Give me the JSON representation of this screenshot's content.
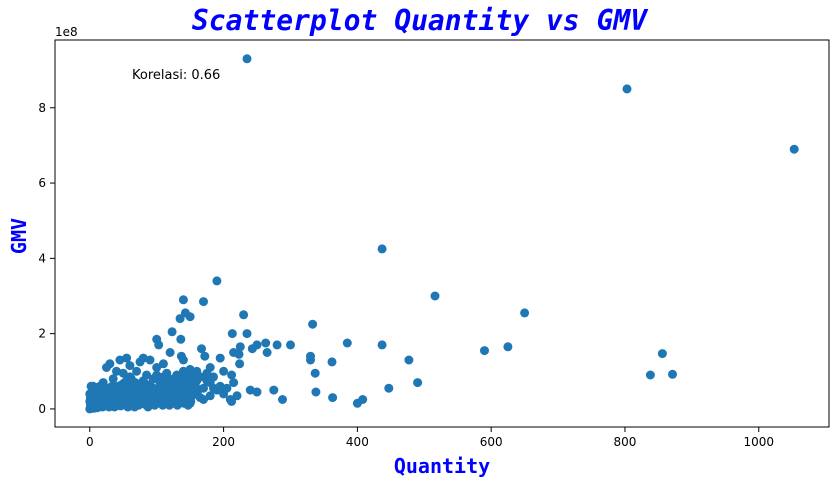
{
  "chart_data": {
    "type": "scatter",
    "title": "Scatterplot Quantity vs GMV",
    "xlabel": "Quantity",
    "ylabel": "GMV",
    "y_offset_label": "1e8",
    "annotation": "Korelasi: 0.66",
    "xlim": [
      -52,
      1105
    ],
    "ylim": [
      -0.48,
      9.8
    ],
    "y_unit_multiplier": 100000000,
    "x_ticks": [
      0,
      200,
      400,
      600,
      800,
      1000
    ],
    "y_ticks": [
      0,
      2,
      4,
      6,
      8
    ],
    "grid": false,
    "point_color": "#1f77b4",
    "title_color": "#0000ff",
    "series": [
      {
        "points": [
          [
            235,
            9.3
          ],
          [
            803,
            8.5
          ],
          [
            1053,
            6.9
          ],
          [
            437,
            4.25
          ],
          [
            516,
            3.0
          ],
          [
            190,
            3.4
          ],
          [
            140,
            2.9
          ],
          [
            170,
            2.85
          ],
          [
            143,
            2.55
          ],
          [
            150,
            2.45
          ],
          [
            135,
            2.4
          ],
          [
            230,
            2.5
          ],
          [
            650,
            2.55
          ],
          [
            333,
            2.25
          ],
          [
            123,
            2.05
          ],
          [
            213,
            2.0
          ],
          [
            235,
            2.0
          ],
          [
            100,
            1.85
          ],
          [
            136,
            1.85
          ],
          [
            103,
            1.7
          ],
          [
            385,
            1.75
          ],
          [
            437,
            1.7
          ],
          [
            625,
            1.65
          ],
          [
            590,
            1.55
          ],
          [
            856,
            1.47
          ],
          [
            300,
            1.7
          ],
          [
            280,
            1.7
          ],
          [
            263,
            1.75
          ],
          [
            250,
            1.7
          ],
          [
            225,
            1.65
          ],
          [
            223,
            1.45
          ],
          [
            215,
            1.5
          ],
          [
            167,
            1.6
          ],
          [
            172,
            1.4
          ],
          [
            195,
            1.35
          ],
          [
            265,
            1.5
          ],
          [
            243,
            1.6
          ],
          [
            330,
            1.4
          ],
          [
            330,
            1.3
          ],
          [
            362,
            1.25
          ],
          [
            477,
            1.3
          ],
          [
            224,
            1.2
          ],
          [
            120,
            1.5
          ],
          [
            137,
            1.4
          ],
          [
            140,
            1.3
          ],
          [
            110,
            1.2
          ],
          [
            90,
            1.3
          ],
          [
            80,
            1.35
          ],
          [
            75,
            1.25
          ],
          [
            55,
            1.35
          ],
          [
            45,
            1.3
          ],
          [
            30,
            1.2
          ],
          [
            25,
            1.1
          ],
          [
            60,
            1.15
          ],
          [
            100,
            1.1
          ],
          [
            150,
            1.05
          ],
          [
            160,
            1.0
          ],
          [
            180,
            1.1
          ],
          [
            200,
            1.0
          ],
          [
            212,
            0.9
          ],
          [
            337,
            0.95
          ],
          [
            838,
            0.9
          ],
          [
            871,
            0.92
          ],
          [
            490,
            0.7
          ],
          [
            447,
            0.55
          ],
          [
            275,
            0.5
          ],
          [
            240,
            0.5
          ],
          [
            250,
            0.45
          ],
          [
            338,
            0.45
          ],
          [
            363,
            0.3
          ],
          [
            400,
            0.15
          ],
          [
            408,
            0.25
          ],
          [
            288,
            0.25
          ],
          [
            210,
            0.25
          ],
          [
            212,
            0.2
          ],
          [
            170,
            0.25
          ],
          [
            165,
            0.3
          ],
          [
            150,
            0.15
          ],
          [
            130,
            0.5
          ],
          [
            140,
            0.6
          ],
          [
            155,
            0.7
          ],
          [
            175,
            0.75
          ],
          [
            185,
            0.55
          ],
          [
            200,
            0.4
          ],
          [
            195,
            0.6
          ],
          [
            180,
            0.35
          ],
          [
            160,
            0.45
          ],
          [
            145,
            0.35
          ],
          [
            120,
            0.3
          ],
          [
            110,
            0.4
          ],
          [
            105,
            0.7
          ],
          [
            95,
            0.8
          ],
          [
            85,
            0.9
          ],
          [
            70,
            1.0
          ],
          [
            60,
            0.85
          ],
          [
            50,
            0.95
          ],
          [
            40,
            1.0
          ],
          [
            35,
            0.8
          ],
          [
            20,
            0.7
          ],
          [
            15,
            0.6
          ],
          [
            10,
            0.55
          ],
          [
            5,
            0.6
          ],
          [
            2,
            0.4
          ],
          [
            8,
            0.3
          ],
          [
            12,
            0.25
          ],
          [
            18,
            0.2
          ],
          [
            22,
            0.15
          ],
          [
            28,
            0.35
          ],
          [
            32,
            0.45
          ],
          [
            38,
            0.5
          ],
          [
            42,
            0.6
          ],
          [
            48,
            0.65
          ],
          [
            55,
            0.55
          ],
          [
            62,
            0.6
          ],
          [
            68,
            0.7
          ],
          [
            72,
            0.45
          ],
          [
            78,
            0.5
          ],
          [
            82,
            0.6
          ],
          [
            88,
            0.55
          ],
          [
            92,
            0.45
          ],
          [
            98,
            0.35
          ],
          [
            102,
            0.5
          ],
          [
            108,
            0.55
          ],
          [
            115,
            0.6
          ],
          [
            118,
            0.75
          ],
          [
            125,
            0.8
          ],
          [
            128,
            0.65
          ],
          [
            132,
            0.7
          ],
          [
            138,
            0.55
          ],
          [
            142,
            0.85
          ],
          [
            148,
            0.95
          ],
          [
            152,
            0.8
          ],
          [
            158,
            0.6
          ],
          [
            162,
            0.5
          ],
          [
            3,
            0.05
          ],
          [
            4,
            0.1
          ],
          [
            6,
            0.02
          ],
          [
            7,
            0.15
          ],
          [
            9,
            0.08
          ],
          [
            11,
            0.12
          ],
          [
            13,
            0.05
          ],
          [
            14,
            0.18
          ],
          [
            16,
            0.1
          ],
          [
            17,
            0.25
          ],
          [
            19,
            0.05
          ],
          [
            21,
            0.3
          ],
          [
            23,
            0.08
          ],
          [
            24,
            0.2
          ],
          [
            26,
            0.12
          ],
          [
            27,
            0.4
          ],
          [
            29,
            0.05
          ],
          [
            31,
            0.22
          ],
          [
            33,
            0.1
          ],
          [
            34,
            0.3
          ],
          [
            36,
            0.15
          ],
          [
            37,
            0.05
          ],
          [
            39,
            0.25
          ],
          [
            41,
            0.35
          ],
          [
            43,
            0.1
          ],
          [
            44,
            0.2
          ],
          [
            46,
            0.08
          ],
          [
            47,
            0.3
          ],
          [
            49,
            0.15
          ],
          [
            51,
            0.4
          ],
          [
            53,
            0.2
          ],
          [
            54,
            0.1
          ],
          [
            56,
            0.3
          ],
          [
            57,
            0.05
          ],
          [
            58,
            0.22
          ],
          [
            59,
            0.35
          ],
          [
            61,
            0.12
          ],
          [
            63,
            0.25
          ],
          [
            64,
            0.4
          ],
          [
            65,
            0.15
          ],
          [
            66,
            0.3
          ],
          [
            67,
            0.05
          ],
          [
            69,
            0.2
          ],
          [
            71,
            0.35
          ],
          [
            73,
            0.1
          ],
          [
            74,
            0.28
          ],
          [
            76,
            0.15
          ],
          [
            77,
            0.4
          ],
          [
            79,
            0.2
          ],
          [
            81,
            0.3
          ],
          [
            83,
            0.12
          ],
          [
            84,
            0.35
          ],
          [
            86,
            0.25
          ],
          [
            87,
            0.05
          ],
          [
            89,
            0.2
          ],
          [
            91,
            0.3
          ],
          [
            93,
            0.15
          ],
          [
            94,
            0.4
          ],
          [
            96,
            0.22
          ],
          [
            97,
            0.1
          ],
          [
            99,
            0.3
          ],
          [
            101,
            0.2
          ],
          [
            104,
            0.35
          ],
          [
            106,
            0.15
          ],
          [
            107,
            0.28
          ],
          [
            109,
            0.1
          ],
          [
            111,
            0.25
          ],
          [
            112,
            0.4
          ],
          [
            113,
            0.15
          ],
          [
            114,
            0.3
          ],
          [
            116,
            0.2
          ],
          [
            117,
            0.45
          ],
          [
            119,
            0.1
          ],
          [
            121,
            0.3
          ],
          [
            122,
            0.2
          ],
          [
            124,
            0.4
          ],
          [
            126,
            0.15
          ],
          [
            127,
            0.35
          ],
          [
            129,
            0.25
          ],
          [
            131,
            0.1
          ],
          [
            133,
            0.3
          ],
          [
            134,
            0.45
          ],
          [
            136,
            0.2
          ],
          [
            139,
            0.3
          ],
          [
            141,
            0.15
          ],
          [
            144,
            0.25
          ],
          [
            146,
            0.4
          ],
          [
            147,
            0.1
          ],
          [
            149,
            0.3
          ],
          [
            151,
            0.2
          ],
          [
            153,
            0.35
          ],
          [
            1,
            0.02
          ],
          [
            2,
            0.15
          ],
          [
            3,
            0.3
          ],
          [
            5,
            0.2
          ],
          [
            6,
            0.45
          ],
          [
            8,
            0.1
          ],
          [
            9,
            0.35
          ],
          [
            10,
            0.2
          ],
          [
            12,
            0.4
          ],
          [
            15,
            0.3
          ],
          [
            18,
            0.45
          ],
          [
            20,
            0.35
          ],
          [
            22,
            0.5
          ],
          [
            25,
            0.4
          ],
          [
            28,
            0.55
          ],
          [
            30,
            0.3
          ],
          [
            33,
            0.6
          ],
          [
            36,
            0.4
          ],
          [
            40,
            0.5
          ],
          [
            43,
            0.45
          ],
          [
            46,
            0.55
          ],
          [
            50,
            0.3
          ],
          [
            52,
            0.7
          ],
          [
            55,
            0.75
          ],
          [
            58,
            0.45
          ],
          [
            62,
            0.8
          ],
          [
            65,
            0.5
          ],
          [
            70,
            0.65
          ],
          [
            75,
            0.55
          ],
          [
            80,
            0.75
          ],
          [
            85,
            0.4
          ],
          [
            90,
            0.65
          ],
          [
            95,
            0.55
          ],
          [
            100,
            0.9
          ],
          [
            105,
            0.45
          ],
          [
            110,
            0.85
          ],
          [
            115,
            0.95
          ],
          [
            120,
            0.55
          ],
          [
            125,
            0.45
          ],
          [
            130,
            0.9
          ],
          [
            135,
            0.75
          ],
          [
            140,
            1.0
          ],
          [
            145,
            0.65
          ],
          [
            150,
            0.5
          ],
          [
            155,
            0.9
          ],
          [
            160,
            0.75
          ],
          [
            165,
            0.85
          ],
          [
            170,
            0.55
          ],
          [
            175,
            0.95
          ],
          [
            180,
            0.7
          ],
          [
            185,
            0.85
          ],
          [
            190,
            0.5
          ],
          [
            205,
            0.55
          ],
          [
            215,
            0.7
          ],
          [
            220,
            0.35
          ],
          [
            0,
            0.0
          ],
          [
            1,
            0.1
          ],
          [
            2,
            0.05
          ],
          [
            3,
            0.2
          ],
          [
            4,
            0.02
          ],
          [
            5,
            0.35
          ],
          [
            6,
            0.15
          ],
          [
            7,
            0.5
          ],
          [
            8,
            0.08
          ],
          [
            9,
            0.22
          ],
          [
            10,
            0.4
          ],
          [
            11,
            0.03
          ],
          [
            0,
            0.2
          ],
          [
            0,
            0.4
          ],
          [
            1,
            0.3
          ],
          [
            2,
            0.6
          ],
          [
            4,
            0.5
          ],
          [
            5,
            0.1
          ],
          [
            7,
            0.25
          ],
          [
            3,
            0.45
          ]
        ]
      }
    ]
  }
}
